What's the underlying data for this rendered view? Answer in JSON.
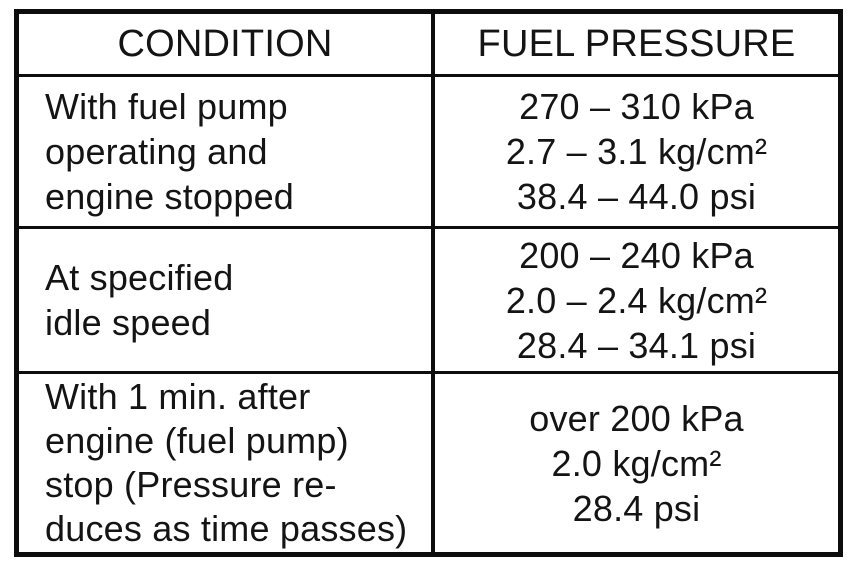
{
  "table": {
    "columns": [
      "CONDITION",
      "FUEL PRESSURE"
    ],
    "rows": [
      {
        "condition": [
          "With fuel pump",
          "operating and",
          "engine stopped"
        ],
        "pressure": [
          "270 – 310 kPa",
          "2.7 – 3.1 kg/cm²",
          "38.4 – 44.0 psi"
        ]
      },
      {
        "condition": [
          "At specified",
          "idle speed"
        ],
        "pressure": [
          "200 – 240 kPa",
          "2.0 – 2.4 kg/cm²",
          "28.4 – 34.1 psi"
        ]
      },
      {
        "condition": [
          "With 1 min. after",
          "engine (fuel pump)",
          "stop (Pressure re-",
          "duces as time passes)"
        ],
        "pressure": [
          "over 200 kPa",
          "2.0 kg/cm²",
          "28.4 psi"
        ]
      }
    ],
    "colors": {
      "border": "#0d0d0d",
      "text": "#141414",
      "background": "#ffffff"
    }
  }
}
